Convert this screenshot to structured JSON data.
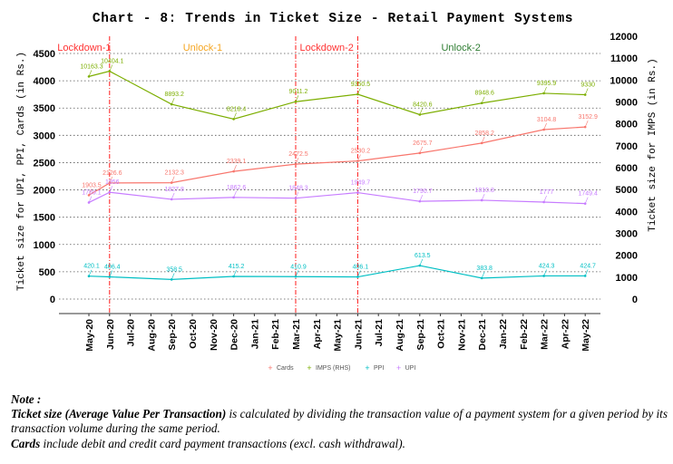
{
  "chart_data": {
    "type": "line",
    "title": "Chart - 8: Trends in Ticket Size - Retail Payment Systems",
    "ylabel": "Ticket size for UPI, PPI, Cards (in Rs.)",
    "ylabel_right": "Ticket size for IMPS (in Rs.)",
    "ylim": [
      0,
      4500
    ],
    "ylim_right": [
      0,
      12000
    ],
    "yticks": [
      0,
      500,
      1000,
      1500,
      2000,
      2500,
      3000,
      3500,
      4000,
      4500
    ],
    "yticks_right": [
      0,
      1000,
      2000,
      3000,
      4000,
      5000,
      6000,
      7000,
      8000,
      9000,
      10000,
      11000,
      12000
    ],
    "x_ticks": [
      "May-20",
      "Jun-20",
      "Jul-20",
      "Aug-20",
      "Sep-20",
      "Oct-20",
      "Nov-20",
      "Dec-20",
      "Jan-21",
      "Feb-21",
      "Mar-21",
      "Apr-21",
      "May-21",
      "Jun-21",
      "Jul-21",
      "Aug-21",
      "Sep-21",
      "Oct-21",
      "Nov-21",
      "Dec-21",
      "Jan-22",
      "Feb-22",
      "Mar-22",
      "Apr-22",
      "May-22"
    ],
    "x": [
      "May-20",
      "Jun-20",
      "Sep-20",
      "Dec-20",
      "Mar-21",
      "Jun-21",
      "Sep-21",
      "Dec-21",
      "Mar-22",
      "May-22"
    ],
    "grid": "horizontal dotted",
    "legend_position": "bottom",
    "series": [
      {
        "name": "Cards",
        "axis": "left",
        "color": "#f8766d",
        "values": [
          1903.5,
          2126.6,
          2132.3,
          2339.1,
          2472.5,
          2530.2,
          2675.7,
          2858.2,
          3104.8,
          3152.9
        ]
      },
      {
        "name": "IMPS (RHS)",
        "axis": "right",
        "color": "#7cae00",
        "values": [
          10163.3,
          10404.1,
          8893.2,
          8218.4,
          9011.2,
          9350.5,
          8420.6,
          8948.6,
          9395.9,
          9330
        ]
      },
      {
        "name": "PPI",
        "axis": "left",
        "color": "#00bfc4",
        "values": [
          420.1,
          406.4,
          358.5,
          415.2,
          410.9,
          406.1,
          613.5,
          383.8,
          424.3,
          424.7
        ]
      },
      {
        "name": "UPI",
        "axis": "left",
        "color": "#c77cff",
        "values": [
          1769.1,
          1956.0,
          1827.8,
          1862.6,
          1848.3,
          1949.7,
          1790.7,
          1810.8,
          1777,
          1749.4
        ]
      }
    ],
    "phase_lines": [
      "Jun-20",
      "Mar-21",
      "Jun-21"
    ],
    "phases": [
      {
        "label": "Lockdown-1",
        "color": "#ff3333"
      },
      {
        "label": "Unlock-1",
        "color": "#f5a623"
      },
      {
        "label": "Lockdown-2",
        "color": "#ff3333"
      },
      {
        "label": "Unlock-2",
        "color": "#2e7d32"
      }
    ]
  },
  "note": {
    "heading": "Note :",
    "line1_bold": "Ticket size (Average Value Per Transaction)",
    "line1_rest": " is calculated by dividing the transaction value of a payment system for a given period by its transaction volume during the same period.",
    "line2_bold": "Cards",
    "line2_rest": " include debit and credit card payment transactions (excl. cash withdrawal)."
  }
}
